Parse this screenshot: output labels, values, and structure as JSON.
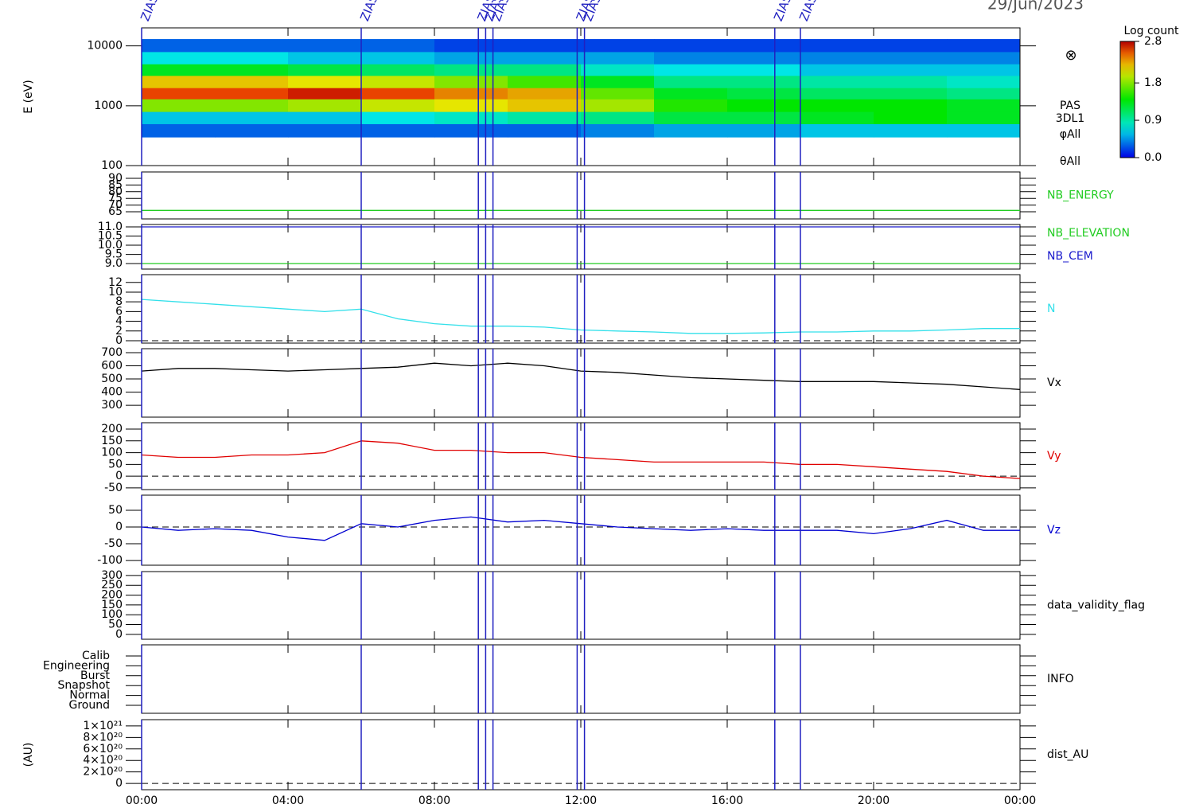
{
  "chart_data": [
    {
      "type": "heatmap",
      "title": "29/Jun/2023",
      "ylabel": "E (eV)",
      "log_y": true,
      "ylim": [
        100,
        20000
      ],
      "yticks": [
        100,
        1000,
        10000
      ],
      "x_bins": [
        0,
        2,
        4,
        6,
        8,
        10,
        12,
        14,
        16,
        18,
        20,
        22,
        24
      ],
      "y_bins": [
        300,
        500,
        800,
        1300,
        2000,
        3200,
        5000,
        8000,
        13000
      ],
      "values": [
        [
          0.3,
          0.6,
          1.8,
          2.6,
          2.2,
          1.3,
          0.7,
          0.3
        ],
        [
          0.3,
          0.6,
          1.8,
          2.6,
          2.2,
          1.3,
          0.7,
          0.3
        ],
        [
          0.3,
          0.6,
          1.9,
          2.7,
          2.1,
          1.2,
          0.6,
          0.3
        ],
        [
          0.3,
          0.7,
          2.0,
          2.6,
          2.0,
          1.1,
          0.6,
          0.3
        ],
        [
          0.3,
          0.8,
          2.1,
          2.4,
          1.8,
          1.0,
          0.5,
          0.2
        ],
        [
          0.3,
          0.9,
          2.2,
          2.3,
          1.6,
          1.0,
          0.5,
          0.2
        ],
        [
          0.4,
          1.0,
          1.9,
          1.7,
          1.3,
          0.8,
          0.5,
          0.2
        ],
        [
          0.5,
          1.2,
          1.5,
          1.3,
          1.0,
          0.7,
          0.4,
          0.2
        ],
        [
          0.5,
          1.2,
          1.4,
          1.2,
          1.0,
          0.7,
          0.4,
          0.2
        ],
        [
          0.6,
          1.3,
          1.4,
          1.1,
          0.9,
          0.6,
          0.4,
          0.2
        ],
        [
          0.6,
          1.4,
          1.4,
          1.1,
          0.9,
          0.6,
          0.4,
          0.2
        ],
        [
          0.6,
          1.3,
          1.3,
          1.0,
          0.8,
          0.6,
          0.4,
          0.2
        ]
      ],
      "colorbar": {
        "label": "Log count",
        "lim": [
          0,
          2.8
        ],
        "ticks": [
          2.8,
          1.8,
          0.9,
          {
            "value": 0,
            "label": "0.0"
          }
        ]
      },
      "annotations": [
        "⊗",
        "PAS",
        "3DL1",
        "φAll",
        "θAll"
      ],
      "events": [
        {
          "x": 0.0,
          "label": "ZIAS"
        },
        {
          "x": 6.0,
          "label": "ZIAS"
        },
        {
          "x": 9.2,
          "label": "ZIAS"
        },
        {
          "x": 9.4,
          "label": "ZIAS"
        },
        {
          "x": 9.6,
          "label": "ZIAS"
        },
        {
          "x": 11.9,
          "label": "ZIAS"
        },
        {
          "x": 12.1,
          "label": "ZIAS"
        },
        {
          "x": 17.3,
          "label": "ZIAS"
        },
        {
          "x": 18.0,
          "label": "ZIAS"
        }
      ]
    },
    {
      "type": "line",
      "ylim": [
        59.6,
        94.8
      ],
      "yticks": [
        65,
        70,
        75,
        80,
        85,
        90
      ],
      "x": [
        0,
        1,
        2,
        3,
        4,
        5,
        6,
        7,
        8,
        9,
        10,
        11,
        12,
        13,
        14,
        15,
        16,
        17,
        18,
        19,
        20,
        21,
        22,
        23,
        24
      ],
      "series": [
        {
          "name": "NB_ENERGY",
          "color": "#22cc22",
          "values": [
            66,
            66,
            66,
            66,
            66,
            66,
            66,
            66,
            66,
            66,
            66,
            66,
            66,
            66,
            66,
            66,
            66,
            66,
            66,
            66,
            66,
            66,
            66,
            66,
            66
          ]
        }
      ]
    },
    {
      "type": "line",
      "ylim": [
        8.7,
        11.13
      ],
      "yticks": [
        {
          "value": 9,
          "label": "9.0"
        },
        9.5,
        {
          "value": 10,
          "label": "10.0"
        },
        10.5,
        {
          "value": 11,
          "label": "11.0"
        }
      ],
      "x": [
        0,
        1,
        2,
        3,
        4,
        5,
        6,
        7,
        8,
        9,
        10,
        11,
        12,
        13,
        14,
        15,
        16,
        17,
        18,
        19,
        20,
        21,
        22,
        23,
        24
      ],
      "series": [
        {
          "name": "NB_ELEVATION",
          "color": "#22cc22",
          "values": [
            9,
            9,
            9,
            9,
            9,
            9,
            9,
            9,
            9,
            9,
            9,
            9,
            9,
            9,
            9,
            9,
            9,
            9,
            9,
            9,
            9,
            9,
            9,
            9,
            9
          ]
        },
        {
          "name": "NB_CEM",
          "color": "#1a1acc",
          "values": [
            11,
            11,
            11,
            11,
            11,
            11,
            11,
            11,
            11,
            11,
            11,
            11,
            11,
            11,
            11,
            11,
            11,
            11,
            11,
            11,
            11,
            11,
            11,
            11,
            11
          ]
        }
      ]
    },
    {
      "type": "line",
      "ylim": [
        -0.5,
        13.6
      ],
      "yticks": [
        0,
        2,
        4,
        6,
        8,
        10,
        12
      ],
      "zero_line": true,
      "x": [
        0,
        1,
        2,
        3,
        4,
        5,
        6,
        7,
        8,
        9,
        10,
        11,
        12,
        13,
        14,
        15,
        16,
        17,
        18,
        19,
        20,
        21,
        22,
        23,
        24
      ],
      "series": [
        {
          "name": "N",
          "color": "#33e0ea",
          "values": [
            8.5,
            8,
            7.5,
            7,
            6.5,
            6,
            6.5,
            4.5,
            3.5,
            3,
            3,
            2.8,
            2.2,
            2,
            1.8,
            1.5,
            1.5,
            1.6,
            1.8,
            1.8,
            2,
            2,
            2.2,
            2.5,
            2.5
          ]
        }
      ]
    },
    {
      "type": "line",
      "ylim": [
        210,
        730
      ],
      "yticks": [
        300,
        400,
        500,
        600,
        700
      ],
      "x": [
        0,
        1,
        2,
        3,
        4,
        5,
        6,
        7,
        8,
        9,
        10,
        11,
        12,
        13,
        14,
        15,
        16,
        17,
        18,
        19,
        20,
        21,
        22,
        23,
        24
      ],
      "series": [
        {
          "name": "Vx",
          "color": "#000000",
          "values": [
            560,
            580,
            580,
            570,
            560,
            570,
            580,
            590,
            620,
            600,
            620,
            600,
            560,
            550,
            530,
            510,
            500,
            490,
            480,
            480,
            480,
            470,
            460,
            440,
            420
          ]
        }
      ]
    },
    {
      "type": "line",
      "ylim": [
        -57,
        227
      ],
      "yticks": [
        -50,
        0,
        50,
        100,
        150,
        200
      ],
      "zero_line": true,
      "x": [
        0,
        1,
        2,
        3,
        4,
        5,
        6,
        7,
        8,
        9,
        10,
        11,
        12,
        13,
        14,
        15,
        16,
        17,
        18,
        19,
        20,
        21,
        22,
        23,
        24
      ],
      "series": [
        {
          "name": "Vy",
          "color": "#e00000",
          "values": [
            90,
            80,
            80,
            90,
            90,
            100,
            150,
            140,
            110,
            110,
            100,
            100,
            80,
            70,
            60,
            60,
            60,
            60,
            50,
            50,
            40,
            30,
            20,
            0,
            -10
          ]
        }
      ]
    },
    {
      "type": "line",
      "ylim": [
        -114,
        95
      ],
      "yticks": [
        -100,
        -50,
        0,
        50
      ],
      "zero_line": true,
      "x": [
        0,
        1,
        2,
        3,
        4,
        5,
        6,
        7,
        8,
        9,
        10,
        11,
        12,
        13,
        14,
        15,
        16,
        17,
        18,
        19,
        20,
        21,
        22,
        23,
        24
      ],
      "series": [
        {
          "name": "Vz",
          "color": "#0000d0",
          "values": [
            0,
            -10,
            -5,
            -10,
            -30,
            -40,
            10,
            0,
            20,
            30,
            15,
            20,
            10,
            0,
            -5,
            -10,
            -5,
            -10,
            -10,
            -10,
            -20,
            -5,
            20,
            -10,
            -10
          ]
        }
      ]
    },
    {
      "type": "empty",
      "ylim": [
        -25,
        320
      ],
      "yticks": [
        0,
        50,
        100,
        150,
        200,
        250,
        300
      ],
      "right_label": "data_validity_flag"
    },
    {
      "type": "category",
      "categories": [
        "Calib",
        "Engineering",
        "Burst",
        "Snapshot",
        "Normal",
        "Ground"
      ],
      "right_label": "INFO"
    },
    {
      "type": "empty",
      "ylabel": "(AU)",
      "ylim": [
        -1.1e+20,
        1.11e+21
      ],
      "zero_line": true,
      "right_label": "dist_AU",
      "yticks": [
        0,
        {
          "value": 2e+20,
          "label": "2×10²⁰"
        },
        {
          "value": 4e+20,
          "label": "4×10²⁰"
        },
        {
          "value": 6e+20,
          "label": "6×10²⁰"
        },
        {
          "value": 8e+20,
          "label": "8×10²⁰"
        },
        {
          "value": 1e+21,
          "label": "1×10²¹"
        }
      ],
      "xlim": [
        0,
        24
      ],
      "xticks": [
        {
          "value": 0,
          "label": "00:00"
        },
        {
          "value": 4,
          "label": "04:00"
        },
        {
          "value": 8,
          "label": "08:00"
        },
        {
          "value": 12,
          "label": "12:00"
        },
        {
          "value": 16,
          "label": "16:00"
        },
        {
          "value": 20,
          "label": "20:00"
        },
        {
          "value": 24,
          "label": "00:00"
        }
      ]
    }
  ]
}
